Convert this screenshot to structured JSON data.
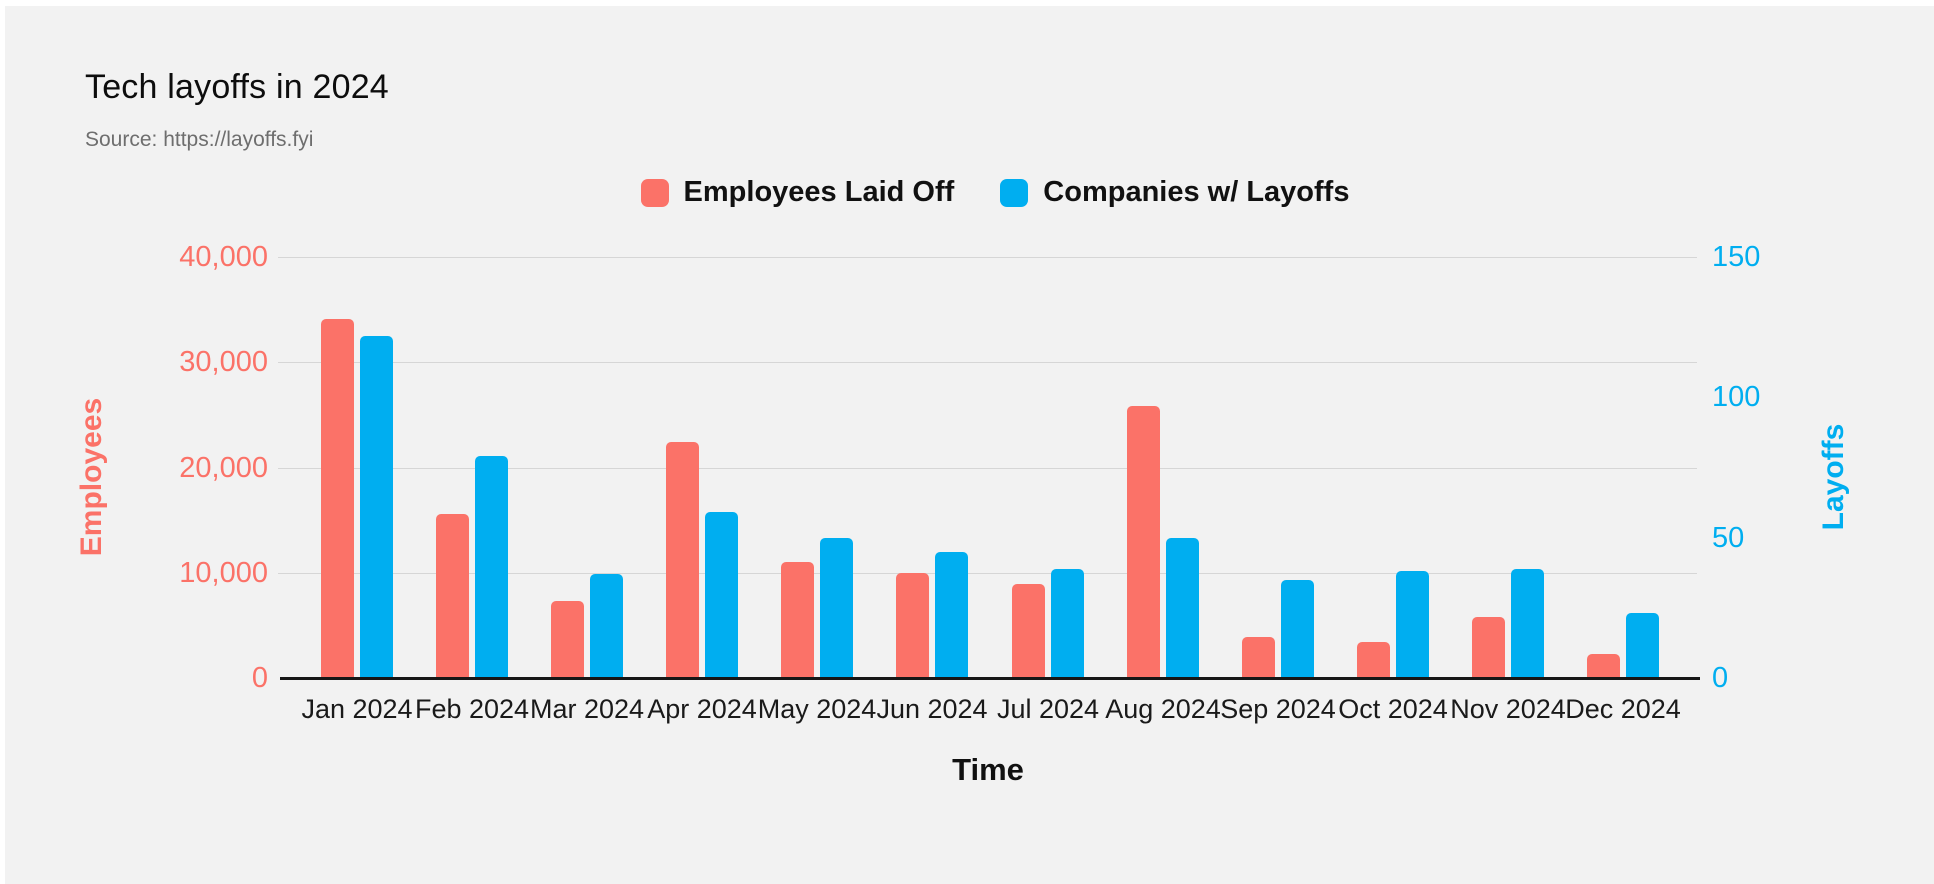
{
  "page": {
    "background_color": "#f2f2f2",
    "accent_red": "#fb7268",
    "accent_blue": "#00aef0"
  },
  "header": {
    "title": "Tech layoffs in 2024",
    "source": "Source: https://layoffs.fyi"
  },
  "chart_data": {
    "type": "bar",
    "title": "Tech layoffs in 2024",
    "source": "Source: https://layoffs.fyi",
    "categories": [
      "Jan 2024",
      "Feb 2024",
      "Mar 2024",
      "Apr 2024",
      "May 2024",
      "Jun 2024",
      "Jul 2024",
      "Aug 2024",
      "Sep 2024",
      "Oct 2024",
      "Nov 2024",
      "Dec 2024"
    ],
    "series": [
      {
        "name": "Employees Laid Off",
        "axis": "left",
        "color": "#fb7268",
        "values": [
          34100,
          15600,
          7300,
          22400,
          11000,
          10000,
          8900,
          25800,
          3900,
          3400,
          5800,
          2300
        ]
      },
      {
        "name": "Companies w/ Layoffs",
        "axis": "right",
        "color": "#00aef0",
        "values": [
          122,
          79,
          37,
          59,
          50,
          45,
          39,
          50,
          35,
          38,
          39,
          23
        ]
      }
    ],
    "left_axis": {
      "label": "Employees",
      "color": "#fb7268",
      "min": 0,
      "max": 40000,
      "ticks": [
        {
          "value": 40000,
          "text": "40,000"
        },
        {
          "value": 30000,
          "text": "30,000"
        },
        {
          "value": 20000,
          "text": "20,000"
        },
        {
          "value": 10000,
          "text": "10,000"
        },
        {
          "value": 0,
          "text": "0"
        }
      ]
    },
    "right_axis": {
      "label": "Layoffs",
      "color": "#00aef0",
      "min": 0,
      "max": 150,
      "ticks": [
        {
          "value": 150,
          "text": "150"
        },
        {
          "value": 100,
          "text": "100"
        },
        {
          "value": 50,
          "text": "50"
        },
        {
          "value": 0,
          "text": "0"
        }
      ]
    },
    "xlabel": "Time",
    "grid": true,
    "legend_position": "top-center"
  }
}
